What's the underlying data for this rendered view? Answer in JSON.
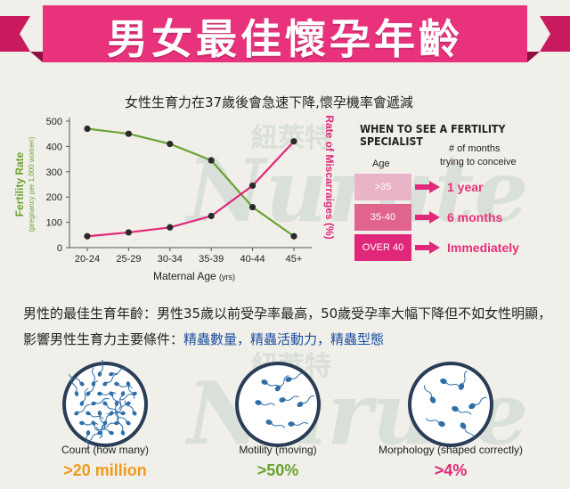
{
  "header": {
    "title": "男女最佳懷孕年齡"
  },
  "chart_title": "女性生育力在37歲後會急速下降,懷孕機率會遞減",
  "chart_data": {
    "type": "line",
    "categories": [
      "20-24",
      "25-29",
      "30-34",
      "35-39",
      "40-44",
      "45+"
    ],
    "xlabel": "Maternal Age",
    "xlabel_unit": "(yrs)",
    "ylabel_left": "Fertility Rate",
    "ylabel_left_sub": "(pregnancy per 1,000 women)",
    "ylabel_right": "Rate of Miscarraiges (%)",
    "ylim": [
      0,
      500
    ],
    "yticks": [
      0,
      100,
      200,
      300,
      400,
      500
    ],
    "grid": false,
    "series": [
      {
        "name": "Fertility Rate",
        "values": [
          470,
          450,
          410,
          345,
          160,
          45
        ],
        "color": "#6aa332"
      },
      {
        "name": "Rate of Miscarraiges (%)",
        "values": [
          45,
          60,
          80,
          125,
          245,
          420
        ],
        "color": "#e0287a"
      }
    ]
  },
  "fertility": {
    "title": "WHEN TO SEE A FERTILITY SPECIALIST",
    "age_header": "Age",
    "months_header_1": "# of months",
    "months_header_2": "trying to conceive",
    "rows": [
      {
        "age": ">35",
        "answer": "1 year",
        "color": "#e9b3c8"
      },
      {
        "age": "35-40",
        "answer": "6 months",
        "color": "#e0648e"
      },
      {
        "age": "OVER 40",
        "answer": "Immediately",
        "color": "#e0287a"
      }
    ]
  },
  "paragraph": {
    "text_1": "男性的最佳生育年齡：男性35歲以前受孕率最高，50歲受孕率大幅下降但不如女性明顯，影響男性生育力主要條件：",
    "highlight": "精蟲數量，精蟲活動力，精蟲型態"
  },
  "watermark": {
    "chinese": "紐萊特",
    "latin": "Nurute"
  },
  "circles": [
    {
      "label": "Count (how many)",
      "value": ">20 million",
      "color": "#f09a1c"
    },
    {
      "label": "Motility (moving)",
      "value": ">50%",
      "color": "#6aa332"
    },
    {
      "label": "Morphology (shaped correctly)",
      "value": ">4%",
      "color": "#e0287a"
    }
  ]
}
